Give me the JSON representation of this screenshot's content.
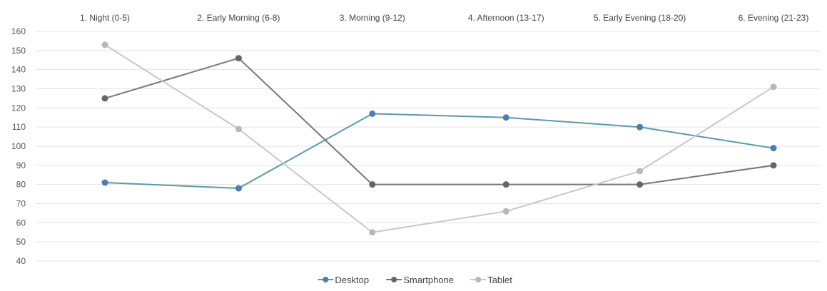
{
  "chart_data": {
    "type": "line",
    "title": "",
    "xlabel": "",
    "ylabel": "",
    "categories": [
      "1. Night (0-5)",
      "2. Early Morning (6-8)",
      "3. Morning (9-12)",
      "4. Afternoon (13-17)",
      "5. Early Evening (18-20)",
      "6. Evening (21-23)"
    ],
    "ylim": [
      40,
      160
    ],
    "yticks": [
      40,
      50,
      60,
      70,
      80,
      90,
      100,
      110,
      120,
      130,
      140,
      150,
      160
    ],
    "grid": true,
    "legend_position": "bottom",
    "category_axis_position": "top",
    "series": [
      {
        "name": "Desktop",
        "color": "#4a7fb0",
        "line_color": "#5a9aa8",
        "values": [
          81,
          78,
          117,
          115,
          110,
          99
        ]
      },
      {
        "name": "Smartphone",
        "color": "#666666",
        "line_color": "#777777",
        "values": [
          125,
          146,
          80,
          80,
          80,
          90
        ]
      },
      {
        "name": "Tablet",
        "color": "#b8b8b8",
        "line_color": "#c8c8c8",
        "values": [
          153,
          109,
          55,
          66,
          87,
          131
        ]
      }
    ]
  }
}
